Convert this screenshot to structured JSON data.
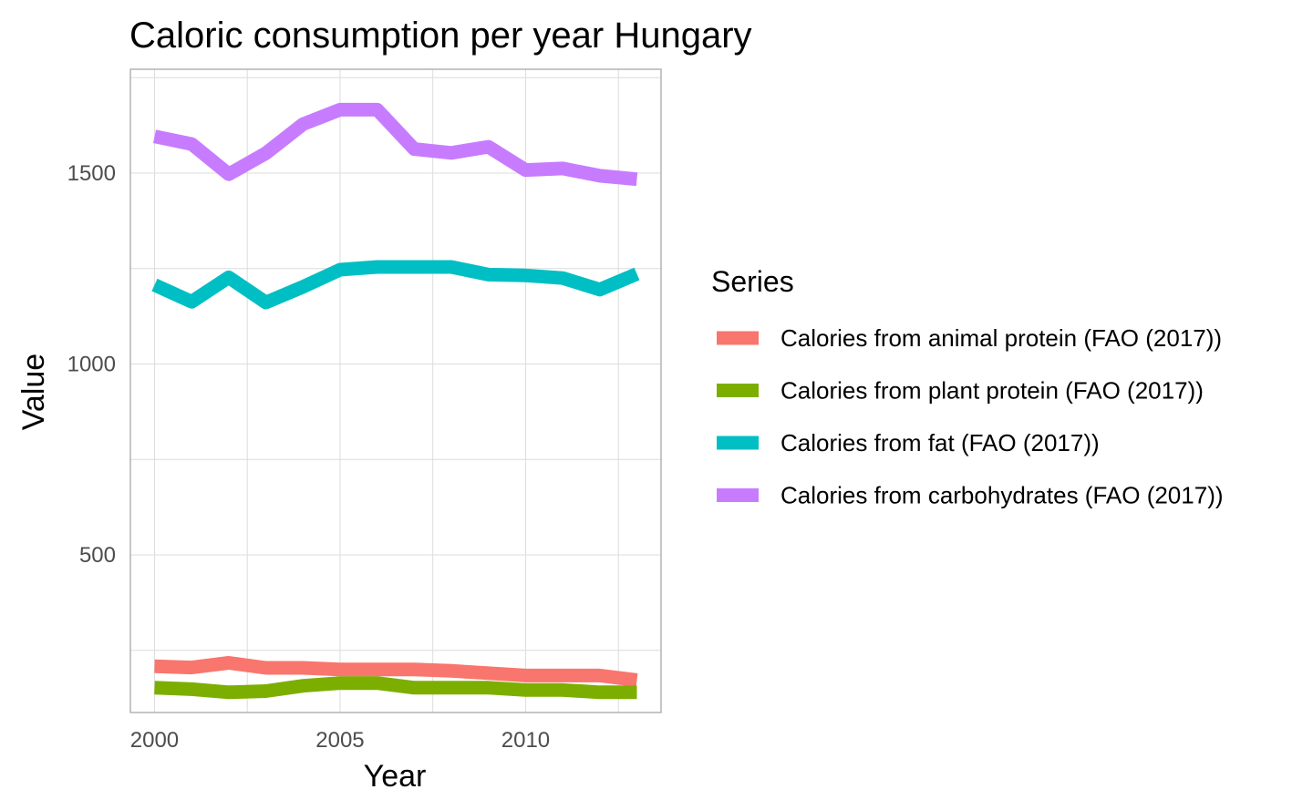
{
  "chart_data": {
    "type": "line",
    "title": "Caloric consumption per year Hungary",
    "xlabel": "Year",
    "ylabel": "Value",
    "x": [
      2000,
      2001,
      2002,
      2003,
      2004,
      2005,
      2006,
      2007,
      2008,
      2009,
      2010,
      2011,
      2012,
      2013
    ],
    "xlim": [
      1999.35,
      2013.65
    ],
    "ylim": [
      87,
      1772
    ],
    "xticks": [
      2000,
      2005,
      2010
    ],
    "yticks": [
      500,
      1000,
      1500
    ],
    "grid": true,
    "legend": {
      "title": "Series",
      "position": "right"
    },
    "series": [
      {
        "name": "Calories from animal protein (FAO (2017))",
        "color": "#F8766D",
        "values": [
          208,
          205,
          217,
          204,
          204,
          200,
          200,
          200,
          196,
          190,
          184,
          184,
          184,
          172
        ]
      },
      {
        "name": "Calories from plant protein (FAO (2017))",
        "color": "#7CAE00",
        "values": [
          152,
          148,
          140,
          143,
          157,
          164,
          164,
          152,
          152,
          152,
          146,
          146,
          140,
          140
        ]
      },
      {
        "name": "Calories from fat (FAO (2017))",
        "color": "#00BFC4",
        "values": [
          1207,
          1163,
          1227,
          1161,
          1202,
          1247,
          1254,
          1254,
          1254,
          1234,
          1232,
          1225,
          1195,
          1236
        ]
      },
      {
        "name": "Calories from carbohydrates (FAO (2017))",
        "color": "#C77CFF",
        "values": [
          1596,
          1576,
          1497,
          1552,
          1628,
          1666,
          1666,
          1563,
          1553,
          1569,
          1508,
          1512,
          1493,
          1484
        ]
      }
    ]
  }
}
